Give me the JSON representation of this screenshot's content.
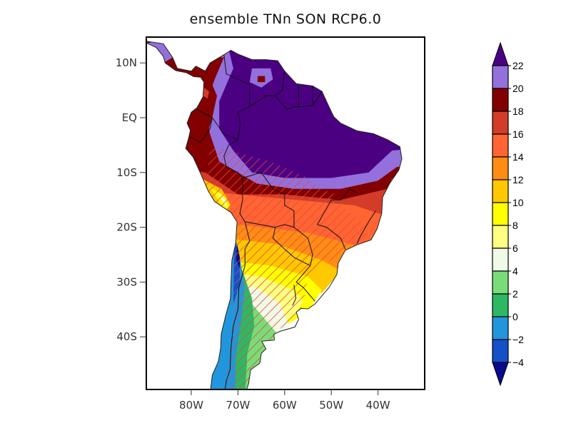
{
  "title": "ensemble TNn SON RCP6.0",
  "chart_data": {
    "type": "heatmap",
    "title": "ensemble TNn SON RCP6.0",
    "map_region": "South America",
    "xlabel": "",
    "ylabel": "",
    "x_ticks": [
      {
        "value": -80,
        "label": "80W"
      },
      {
        "value": -70,
        "label": "70W"
      },
      {
        "value": -60,
        "label": "60W"
      },
      {
        "value": -50,
        "label": "50W"
      },
      {
        "value": -40,
        "label": "40W"
      }
    ],
    "y_ticks": [
      {
        "value": 10,
        "label": "10N"
      },
      {
        "value": 0,
        "label": "EQ"
      },
      {
        "value": -10,
        "label": "10S"
      },
      {
        "value": -20,
        "label": "20S"
      },
      {
        "value": -30,
        "label": "30S"
      },
      {
        "value": -40,
        "label": "40S"
      }
    ],
    "xlim": [
      -90,
      -30
    ],
    "ylim": [
      -50,
      14
    ],
    "colorbar": {
      "levels": [
        -4,
        -2,
        0,
        2,
        4,
        6,
        8,
        10,
        12,
        14,
        16,
        18,
        20,
        22
      ],
      "labels": [
        "22",
        "20",
        "18",
        "16",
        "14",
        "12",
        "10",
        "8",
        "6",
        "4",
        "2",
        "0",
        "−2",
        "−4"
      ],
      "colors": [
        "#0a0a8c",
        "#1450c8",
        "#2196dc",
        "#2eb864",
        "#78dc78",
        "#f0fae6",
        "#ffff80",
        "#ffff00",
        "#ffc800",
        "#ff8c14",
        "#ff6432",
        "#d23c28",
        "#820000",
        "#9370db",
        "#4b0082"
      ],
      "extend": "both",
      "location": "right"
    },
    "hatching": "significance (red diagonal lines)"
  }
}
